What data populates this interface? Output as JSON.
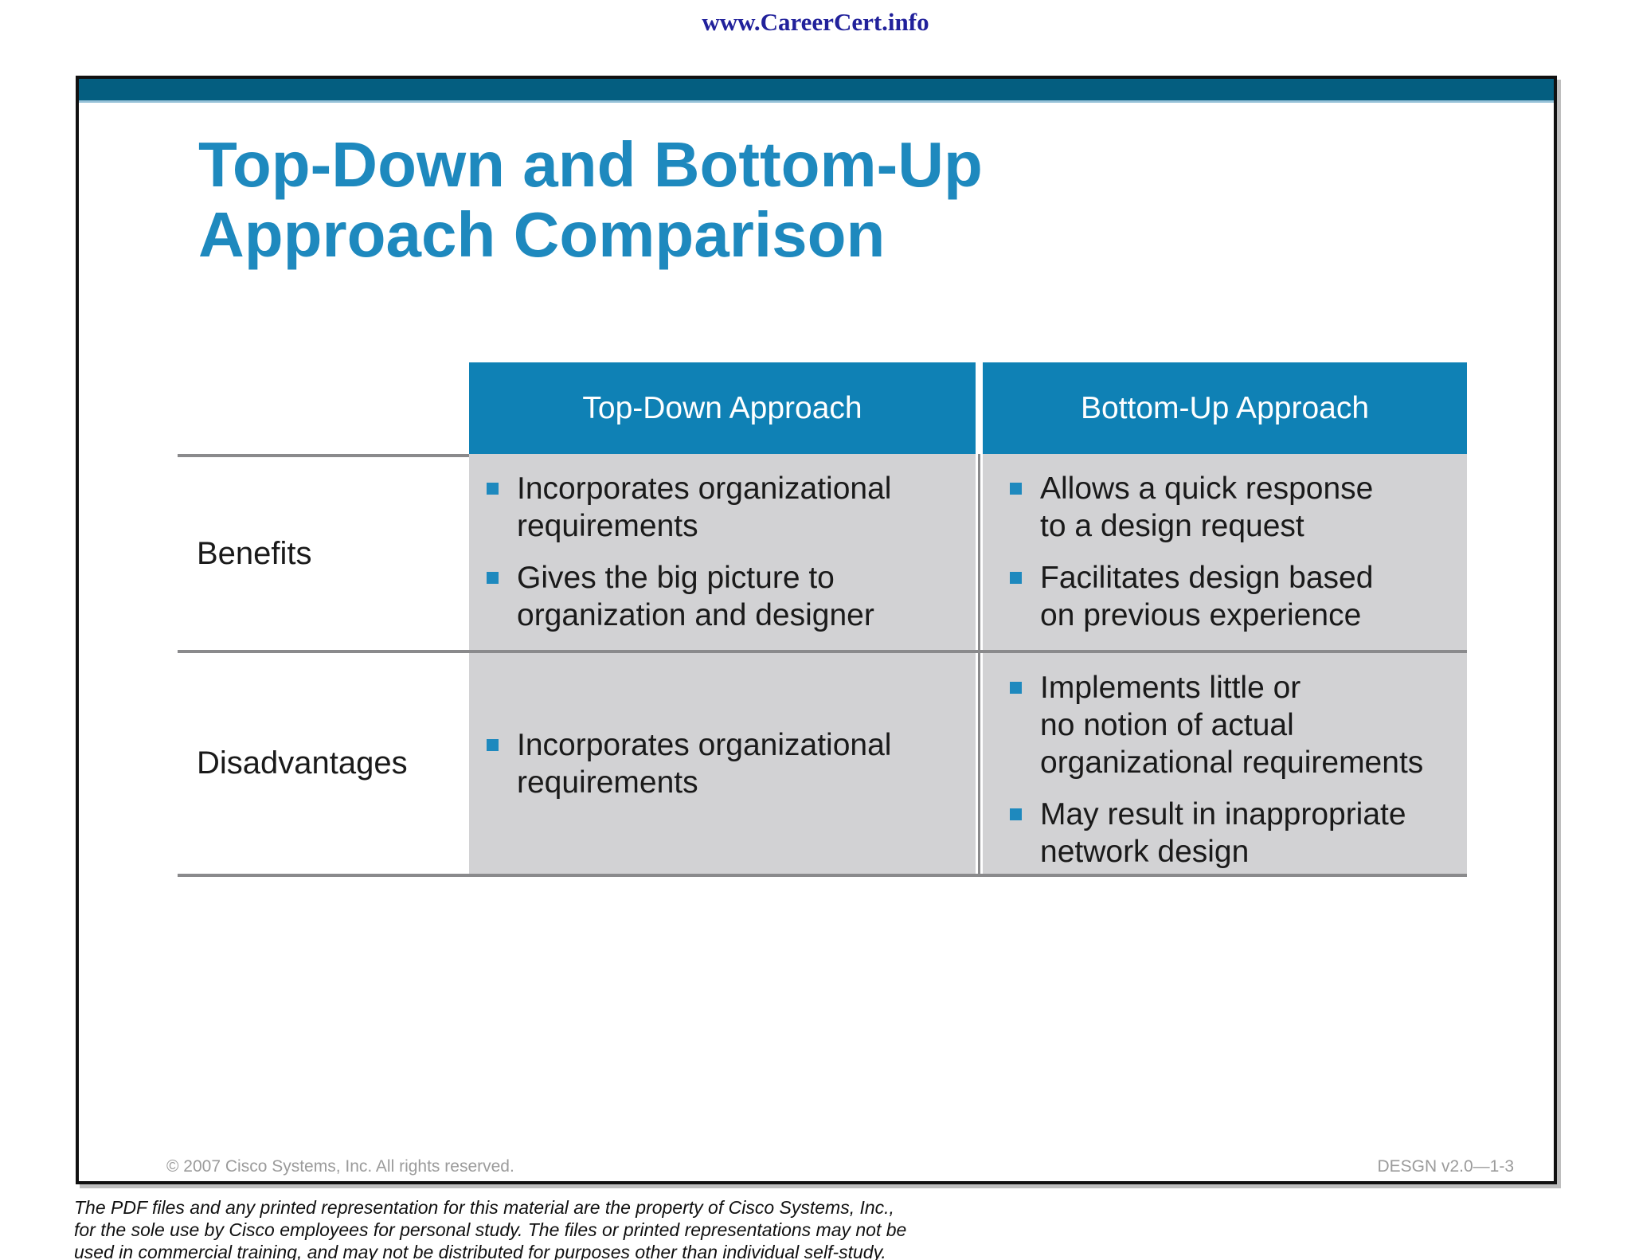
{
  "page_header": {
    "url_text": "www.CareerCert.info"
  },
  "slide": {
    "title": "Top-Down and Bottom-Up\nApproach Comparison",
    "footer": {
      "left": "© 2007 Cisco Systems, Inc. All rights reserved.",
      "right": "DESGN v2.0—1-3"
    }
  },
  "table": {
    "column_headers": [
      "Top-Down Approach",
      "Bottom-Up Approach"
    ],
    "row_labels": [
      "Benefits",
      "Disadvantages"
    ],
    "benefits": {
      "top_down": [
        "Incorporates organizational\nrequirements",
        "Gives the big picture to\norganization and designer"
      ],
      "bottom_up": [
        "Allows a quick response\nto a design request",
        "Facilitates design based\non previous experience"
      ]
    },
    "disadvantages": {
      "top_down": [
        "Incorporates organizational\nrequirements"
      ],
      "bottom_up": [
        "Implements little or\nno notion of actual\norganizational requirements",
        "May result in inappropriate\nnetwork design"
      ]
    }
  },
  "disclaimer": "The PDF files and any printed representation for this material are the property of Cisco Systems, Inc.,\nfor the sole use by Cisco employees for personal study. The files or printed representations may not be\nused in commercial training, and may not be distributed for purposes other than individual self-study.",
  "colors": {
    "top_bar_teal": "#045E80",
    "top_bar_edge": "#97C2D8",
    "table_header_teal": "#0F81B5",
    "title_blue": "#1E89BE",
    "bullet_blue": "#1E89BE",
    "cell_gray": "#D2D2D4",
    "rule_gray": "#8A8A8C",
    "footer_gray": "#9B9B9B",
    "url_navy": "#21219B"
  }
}
